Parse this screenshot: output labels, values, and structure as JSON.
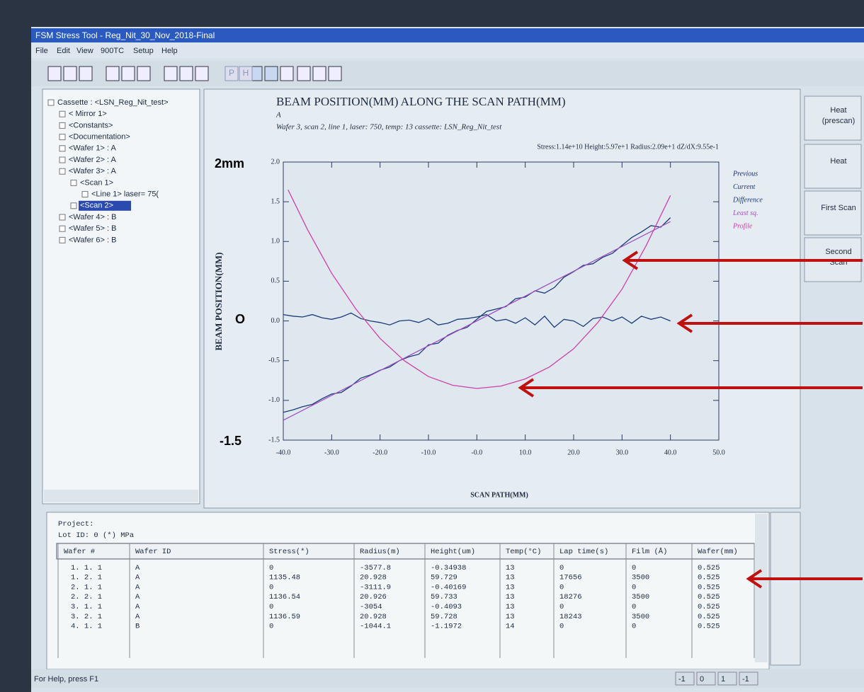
{
  "window": {
    "title": "FSM Stress Tool - Reg_Nit_30_Nov_2018-Final",
    "menu": [
      "File",
      "Edit",
      "View",
      "900TC",
      "Setup",
      "Help"
    ],
    "toolbar": [
      "P",
      "H"
    ],
    "status": "For Help, press F1",
    "status_cells": [
      "-1",
      "0",
      "1",
      "-1"
    ]
  },
  "tree": [
    {
      "label": "Cassette : <LSN_Reg_Nit_test>",
      "children": [
        {
          "label": "< Mirror  1>"
        },
        {
          "label": "<Constants>"
        },
        {
          "label": "<Documentation>"
        },
        {
          "label": "<Wafer   1> : A"
        },
        {
          "label": "<Wafer   2> : A"
        },
        {
          "label": "<Wafer   3> : A",
          "children": [
            {
              "label": "<Scan   1>",
              "children": [
                {
                  "label": "<Line   1> laser= 75("
                }
              ]
            },
            {
              "label": "<Scan   2>",
              "selected": true
            }
          ]
        },
        {
          "label": "<Wafer   4> : B"
        },
        {
          "label": "<Wafer   5> : B"
        },
        {
          "label": "<Wafer   6> : B"
        }
      ]
    }
  ],
  "buttons": [
    [
      "Heat",
      "(prescan)"
    ],
    [
      "Heat"
    ],
    [
      "First Scan"
    ],
    [
      "Second",
      "Scan"
    ]
  ],
  "chart_data": {
    "type": "line",
    "title": "BEAM POSITION(MM) ALONG THE SCAN PATH(MM)",
    "subtitle": "A",
    "caption": "Wafer 3, scan 2, line 1, laser: 750, temp: 13 cassette: LSN_Reg_Nit_test",
    "stats": "Stress:1.14e+10 Height:5.97e+1 Radius:2.09e+1 dZ/dX:9.55e-1",
    "xlabel": "SCAN PATH(MM)",
    "ylabel": "BEAM POSITION(MM)",
    "annotations": [
      "2mm",
      "O",
      "-1.5"
    ],
    "xlim": [
      -40,
      50
    ],
    "ylim": [
      -1.5,
      2
    ],
    "xticks": [
      {
        "value": -40,
        "label": "-40.0"
      },
      {
        "value": -30,
        "label": "-30.0"
      },
      {
        "value": -20,
        "label": "-20.0"
      },
      {
        "value": -10,
        "label": "-10.0"
      },
      {
        "value": 0,
        "label": "-0.0"
      },
      {
        "value": 10,
        "label": "10.0"
      },
      {
        "value": 20,
        "label": "20.0"
      },
      {
        "value": 30,
        "label": "30.0"
      },
      {
        "value": 40,
        "label": "40.0"
      },
      {
        "value": 50,
        "label": "50.0"
      }
    ],
    "yticks": [
      {
        "value": -1.5,
        "label": "-1.5"
      },
      {
        "value": -1,
        "label": "-1.0"
      },
      {
        "value": -0.5,
        "label": "-0.5"
      },
      {
        "value": 0,
        "label": "0.0"
      },
      {
        "value": 0.5,
        "label": "0.5"
      },
      {
        "value": 1,
        "label": "1.0"
      },
      {
        "value": 1.5,
        "label": "1.5"
      },
      {
        "value": 2,
        "label": "2.0"
      }
    ],
    "series": [
      {
        "name": "Previous",
        "color": "#1a2a6e"
      },
      {
        "name": "Current",
        "color": "#1a3a7a",
        "x": [
          -40,
          -38,
          -36,
          -34,
          -32,
          -30,
          -28,
          -26,
          -24,
          -22,
          -20,
          -18,
          -16,
          -14,
          -12,
          -10,
          -8,
          -6,
          -4,
          -2,
          0,
          2,
          4,
          6,
          8,
          10,
          12,
          14,
          16,
          18,
          20,
          22,
          24,
          26,
          28,
          30,
          32,
          34,
          36,
          38,
          40
        ],
        "values": [
          -1.15,
          -1.12,
          -1.08,
          -1.05,
          -0.98,
          -0.92,
          -0.9,
          -0.82,
          -0.72,
          -0.68,
          -0.62,
          -0.58,
          -0.5,
          -0.45,
          -0.42,
          -0.3,
          -0.28,
          -0.18,
          -0.12,
          -0.08,
          0.02,
          0.12,
          0.15,
          0.18,
          0.28,
          0.3,
          0.38,
          0.35,
          0.42,
          0.55,
          0.62,
          0.7,
          0.72,
          0.8,
          0.85,
          0.95,
          1.05,
          1.12,
          1.2,
          1.18,
          1.3
        ]
      },
      {
        "name": "Difference",
        "color": "#1a3a7a",
        "x": [
          -40,
          -38,
          -36,
          -34,
          -32,
          -30,
          -28,
          -26,
          -24,
          -22,
          -20,
          -18,
          -16,
          -14,
          -12,
          -10,
          -8,
          -6,
          -4,
          -2,
          0,
          2,
          4,
          6,
          8,
          10,
          12,
          14,
          16,
          18,
          20,
          22,
          24,
          26,
          28,
          30,
          32,
          34,
          36,
          38,
          40
        ],
        "values": [
          0.08,
          0.06,
          0.05,
          0.08,
          0.04,
          0.02,
          0.05,
          0.1,
          0.03,
          0,
          -0.02,
          -0.05,
          0,
          0.01,
          -0.02,
          0.03,
          -0.05,
          -0.03,
          0.02,
          0.03,
          0.05,
          0.08,
          0,
          0.02,
          -0.03,
          0.04,
          -0.05,
          0.06,
          -0.08,
          0.02,
          0,
          -0.07,
          0.03,
          0.05,
          0,
          0.05,
          -0.03,
          0.06,
          0.02,
          0.05,
          0
        ]
      },
      {
        "name": "Least sq.",
        "color": "#a050c0",
        "x": [
          -40,
          40
        ],
        "values": [
          -1.25,
          1.25
        ]
      },
      {
        "name": "Profile",
        "color": "#d040a8",
        "x": [
          -39,
          -35,
          -30,
          -25,
          -20,
          -15,
          -10,
          -5,
          0,
          5,
          10,
          15,
          20,
          25,
          30,
          35,
          40
        ],
        "values": [
          1.65,
          1.15,
          0.6,
          0.15,
          -0.22,
          -0.5,
          -0.7,
          -0.81,
          -0.85,
          -0.82,
          -0.73,
          -0.58,
          -0.35,
          -0.02,
          0.4,
          0.95,
          1.58
        ]
      }
    ]
  },
  "info": {
    "project": "Project:",
    "lot": "Lot ID: 0  (*) MPa"
  },
  "table": {
    "columns": [
      "Wafer #",
      "Wafer ID",
      "Stress(*)",
      "Radius(m)",
      "Height(um)",
      "Temp(°C)",
      "Lap time(s)",
      "Film (Å)",
      "Wafer(mm)"
    ],
    "rows": [
      [
        "1. 1. 1",
        "A",
        "0",
        "-3577.8",
        "-0.34938",
        "13",
        "0",
        "0",
        "0.525"
      ],
      [
        "1. 2. 1",
        "A",
        "1135.48",
        "20.928",
        "59.729",
        "13",
        "17656",
        "3500",
        "0.525"
      ],
      [
        "2. 1. 1",
        "A",
        "0",
        "-3111.9",
        "-0.40169",
        "13",
        "0",
        "0",
        "0.525"
      ],
      [
        "2. 2. 1",
        "A",
        "1136.54",
        "20.926",
        "59.733",
        "13",
        "18276",
        "3500",
        "0.525"
      ],
      [
        "3. 1. 1",
        "A",
        "0",
        "-3054",
        "-0.4093",
        "13",
        "0",
        "0",
        "0.525"
      ],
      [
        "3. 2. 1",
        "A",
        "1136.59",
        "20.928",
        "59.728",
        "13",
        "18243",
        "3500",
        "0.525"
      ],
      [
        "4. 1. 1",
        "B",
        "0",
        "-1044.1",
        "-1.1972",
        "14",
        "0",
        "0",
        "0.525"
      ]
    ]
  }
}
